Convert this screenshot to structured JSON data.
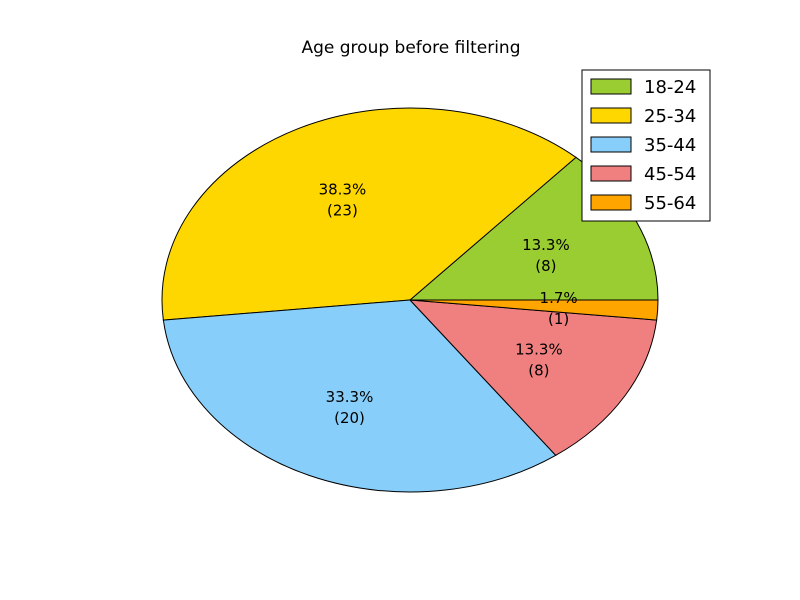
{
  "chart_data": {
    "type": "pie",
    "title": "Age group before filtering",
    "categories": [
      "18-24",
      "25-34",
      "35-44",
      "45-54",
      "55-64"
    ],
    "values": [
      8,
      23,
      20,
      8,
      1
    ],
    "percent_labels": [
      "13.3%",
      "38.3%",
      "33.3%",
      "13.3%",
      "1.7%"
    ],
    "count_labels": [
      "(8)",
      "(23)",
      "(20)",
      "(8)",
      "(1)"
    ],
    "colors": [
      "#9acd32",
      "#ffd700",
      "#87cefa",
      "#f08080",
      "#ffa500"
    ],
    "start_angle_deg": 0,
    "direction": "counterclockwise",
    "legend_position": "top-right"
  }
}
